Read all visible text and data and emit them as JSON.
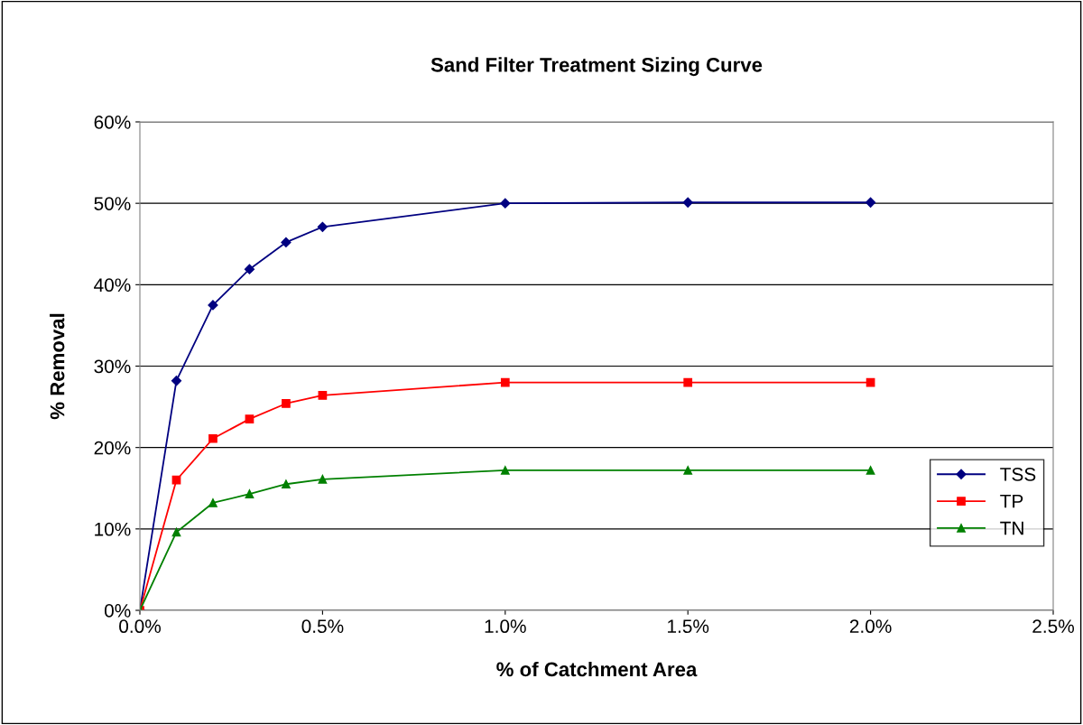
{
  "chart_data": {
    "type": "line",
    "title": "Sand Filter Treatment Sizing Curve",
    "xlabel": "% of Catchment Area",
    "ylabel": "% Removal",
    "x": [
      0,
      0.1,
      0.2,
      0.3,
      0.4,
      0.5,
      1.0,
      1.5,
      2.0
    ],
    "series": [
      {
        "name": "TSS",
        "color": "#000080",
        "marker": "diamond",
        "values": [
          0,
          28.2,
          37.5,
          41.9,
          45.2,
          47.1,
          50.0,
          50.1,
          50.1
        ]
      },
      {
        "name": "TP",
        "color": "#ff0000",
        "marker": "square",
        "values": [
          0,
          16.0,
          21.1,
          23.5,
          25.4,
          26.4,
          28.0,
          28.0,
          28.0
        ]
      },
      {
        "name": "TN",
        "color": "#008000",
        "marker": "triangle",
        "values": [
          0,
          9.6,
          13.2,
          14.3,
          15.5,
          16.1,
          17.2,
          17.2,
          17.2
        ]
      }
    ],
    "xlim": [
      0,
      2.5
    ],
    "xticks": [
      {
        "value": 0,
        "label": "0.0%"
      },
      {
        "value": 0.5,
        "label": "0.5%"
      },
      {
        "value": 1.0,
        "label": "1.0%"
      },
      {
        "value": 1.5,
        "label": "1.5%"
      },
      {
        "value": 2.0,
        "label": "2.0%"
      },
      {
        "value": 2.5,
        "label": "2.5%"
      }
    ],
    "ylim": [
      0,
      60
    ],
    "yticks": [
      {
        "value": 0,
        "label": "0%"
      },
      {
        "value": 10,
        "label": "10%"
      },
      {
        "value": 20,
        "label": "20%"
      },
      {
        "value": 30,
        "label": "30%"
      },
      {
        "value": 40,
        "label": "40%"
      },
      {
        "value": 50,
        "label": "50%"
      },
      {
        "value": 60,
        "label": "60%"
      }
    ],
    "grid": "y",
    "legend": "right",
    "line_style": "solid"
  }
}
